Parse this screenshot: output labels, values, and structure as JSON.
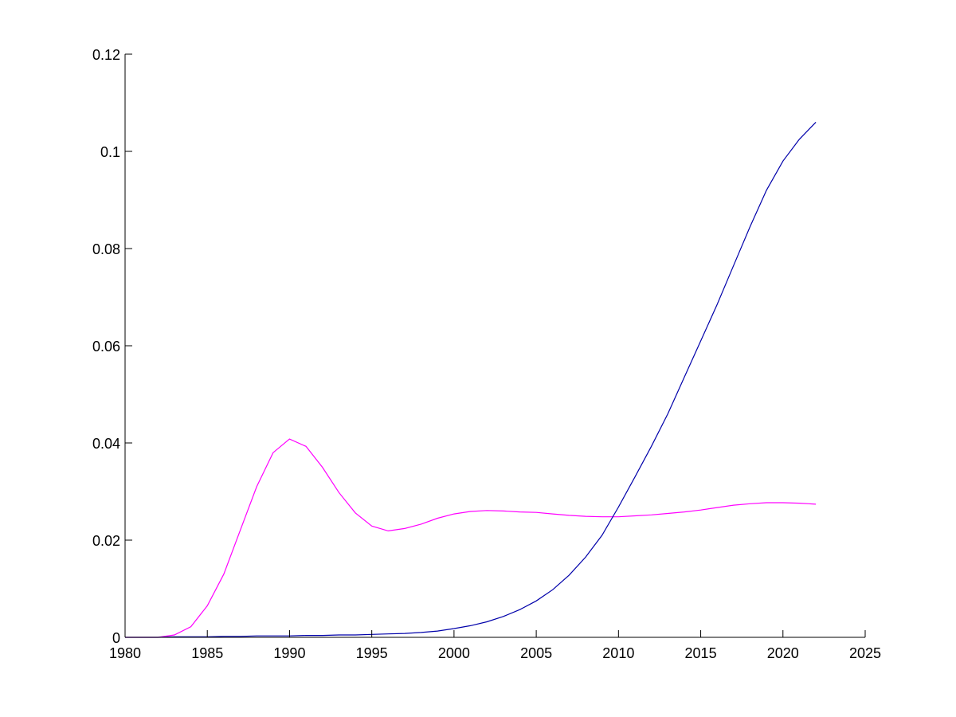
{
  "chart_data": {
    "type": "line",
    "title": "",
    "xlabel": "",
    "ylabel": "",
    "xlim": [
      1980,
      2025
    ],
    "ylim": [
      0,
      0.12
    ],
    "grid": false,
    "x_ticks": [
      "1980",
      "1985",
      "1990",
      "1995",
      "2000",
      "2005",
      "2010",
      "2015",
      "2020",
      "2025"
    ],
    "y_ticks": [
      "0",
      "0.02",
      "0.04",
      "0.06",
      "0.08",
      "0.1",
      "0.12"
    ],
    "x": [
      1980,
      1981,
      1982,
      1983,
      1984,
      1985,
      1986,
      1987,
      1988,
      1989,
      1990,
      1991,
      1992,
      1993,
      1994,
      1995,
      1996,
      1997,
      1998,
      1999,
      2000,
      2001,
      2002,
      2003,
      2004,
      2005,
      2006,
      2007,
      2008,
      2009,
      2010,
      2011,
      2012,
      2013,
      2014,
      2015,
      2016,
      2017,
      2018,
      2019,
      2020,
      2021,
      2022
    ],
    "series": [
      {
        "color": "#ff00ff",
        "values": [
          0,
          0,
          0,
          0.0005,
          0.0022,
          0.0065,
          0.013,
          0.022,
          0.031,
          0.038,
          0.0408,
          0.0393,
          0.035,
          0.0298,
          0.0256,
          0.0229,
          0.0219,
          0.0224,
          0.0233,
          0.0245,
          0.0254,
          0.0259,
          0.0261,
          0.026,
          0.0258,
          0.0257,
          0.0254,
          0.0251,
          0.0249,
          0.0248,
          0.0248,
          0.025,
          0.0252,
          0.0255,
          0.0258,
          0.0262,
          0.0267,
          0.0272,
          0.0275,
          0.0277,
          0.0277,
          0.0276,
          0.0274
        ]
      },
      {
        "color": "#0000aa",
        "values": [
          0,
          0,
          0,
          0.0001,
          0.0001,
          0.0001,
          0.0002,
          0.0002,
          0.0003,
          0.0003,
          0.0003,
          0.0004,
          0.0004,
          0.0005,
          0.0005,
          0.0006,
          0.0007,
          0.0008,
          0.001,
          0.0013,
          0.0018,
          0.0024,
          0.0032,
          0.0043,
          0.0057,
          0.0075,
          0.0098,
          0.0128,
          0.0165,
          0.021,
          0.0268,
          0.033,
          0.0393,
          0.046,
          0.0535,
          0.061,
          0.0685,
          0.0765,
          0.0845,
          0.092,
          0.098,
          0.1025,
          0.106
        ]
      }
    ]
  }
}
